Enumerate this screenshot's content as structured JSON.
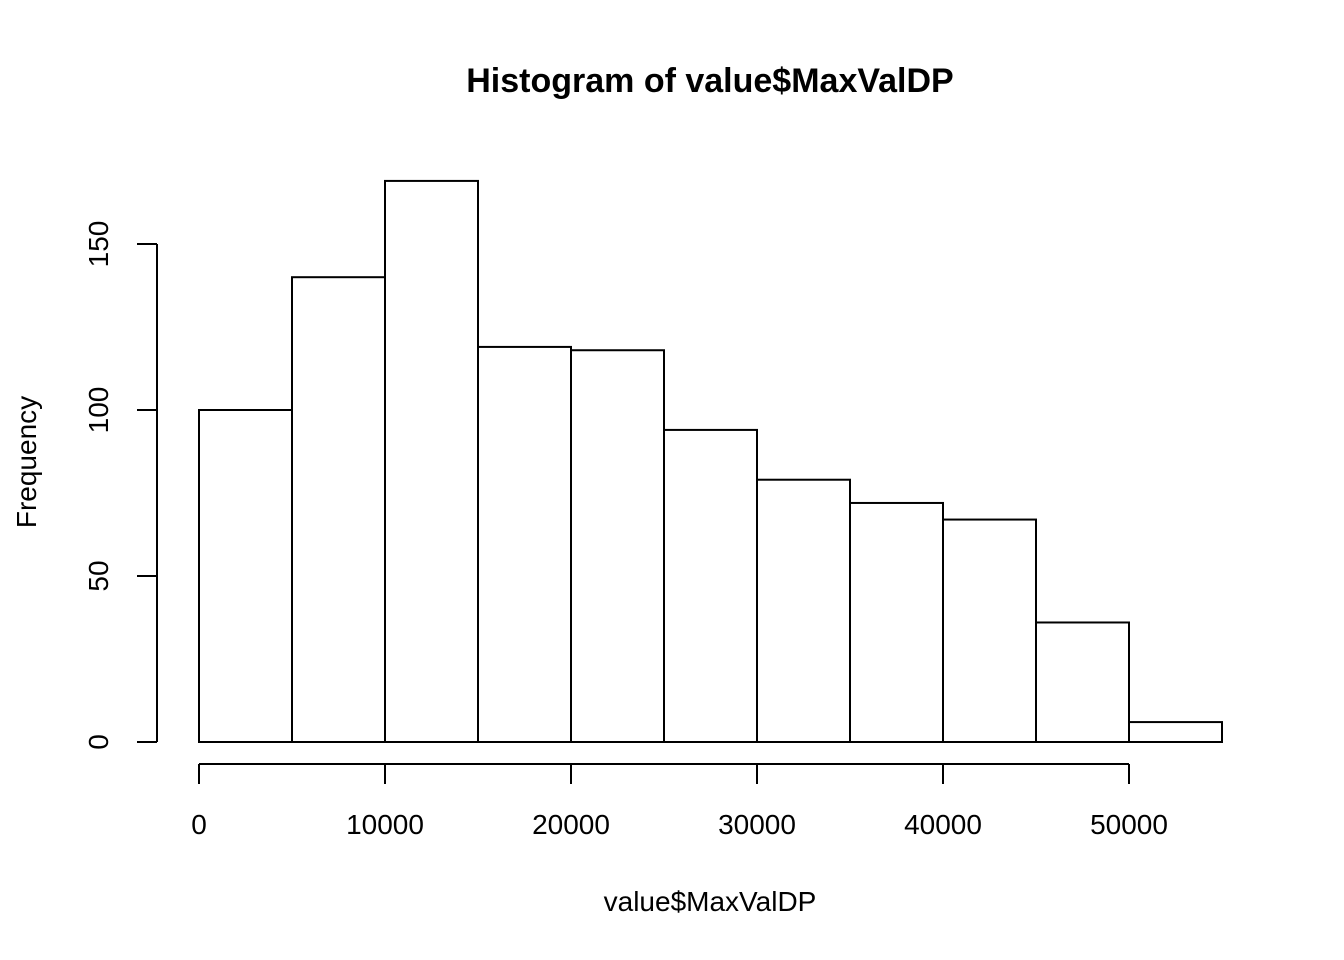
{
  "chart_data": {
    "type": "bar",
    "title": "Histogram of value$MaxValDP",
    "xlabel": "value$MaxValDP",
    "ylabel": "Frequency",
    "bin_edges": [
      0,
      5000,
      10000,
      15000,
      20000,
      25000,
      30000,
      35000,
      40000,
      45000,
      50000,
      55000
    ],
    "values": [
      100,
      140,
      169,
      119,
      118,
      94,
      79,
      72,
      67,
      36,
      6
    ],
    "xlim": [
      0,
      55000
    ],
    "ylim": [
      0,
      169
    ],
    "x_ticks": [
      0,
      10000,
      20000,
      30000,
      40000,
      50000
    ],
    "x_tick_labels": [
      "0",
      "10000",
      "20000",
      "30000",
      "40000",
      "50000"
    ],
    "y_ticks": [
      0,
      50,
      100,
      150
    ],
    "y_tick_labels": [
      "0",
      "50",
      "100",
      "150"
    ],
    "grid": false,
    "legend": "none",
    "colors": {
      "bar_fill": "#ffffff",
      "bar_stroke": "#000000",
      "axis": "#000000"
    }
  }
}
